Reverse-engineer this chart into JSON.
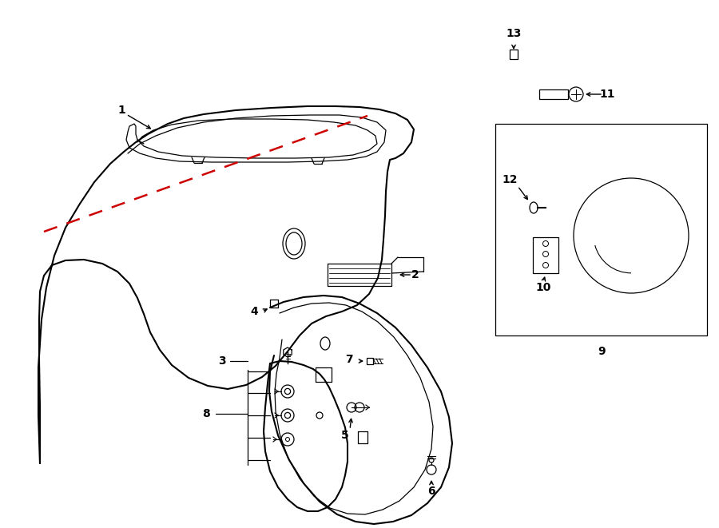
{
  "background_color": "#ffffff",
  "line_color": "#000000",
  "dashed_line_color": "#cc0000",
  "label_fontsize": 10,
  "title_fontsize": 11,
  "subtitle_fontsize": 7,
  "fig_width": 9.0,
  "fig_height": 6.61,
  "dpi": 100
}
